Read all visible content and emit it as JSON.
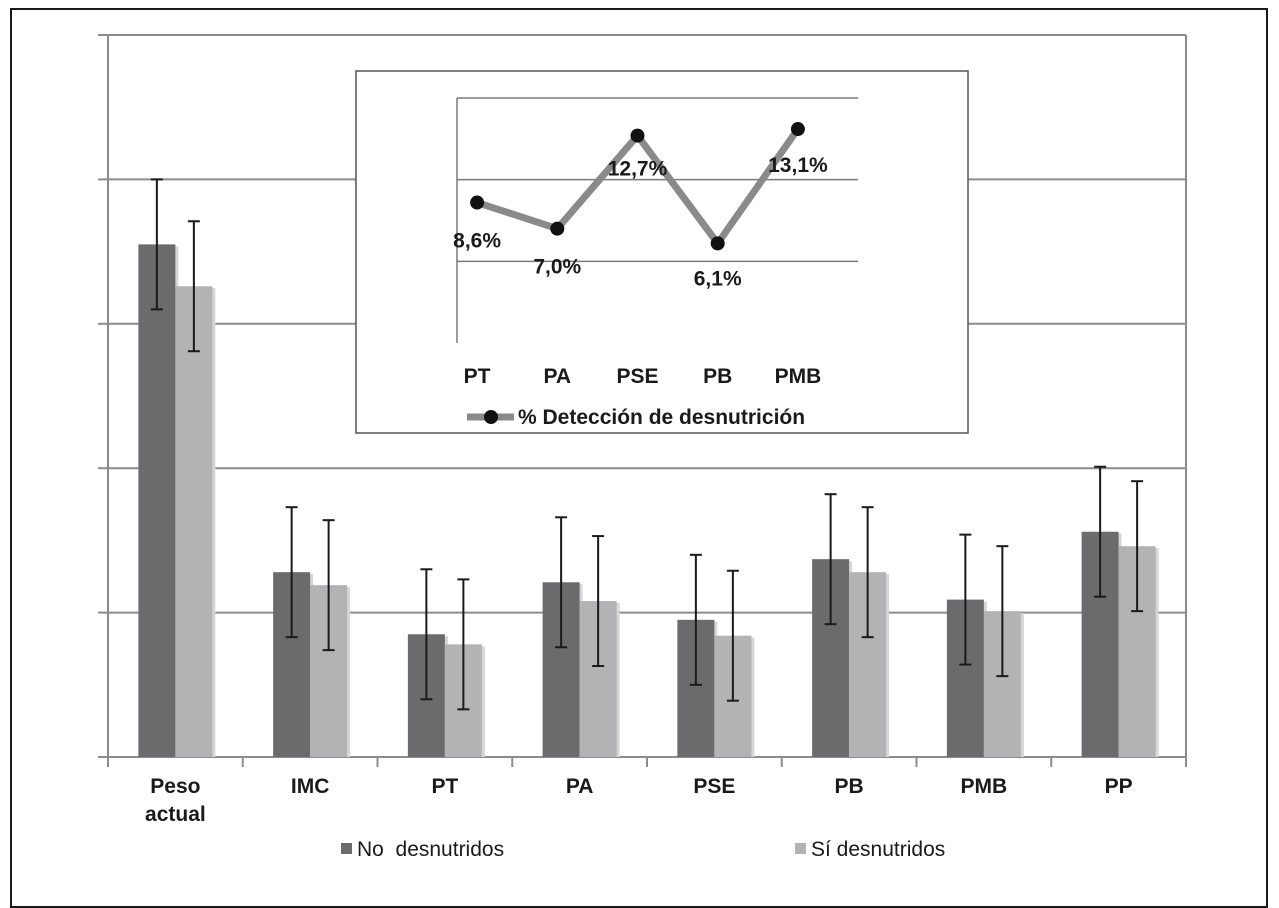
{
  "chart_data": [
    {
      "type": "bar",
      "categories": [
        [
          "Peso",
          "actual"
        ],
        [
          "IMC"
        ],
        [
          "PT"
        ],
        [
          "PA"
        ],
        [
          "PSE"
        ],
        [
          "PB"
        ],
        [
          "PMB"
        ],
        [
          "PP"
        ]
      ],
      "ylim": [
        0,
        50
      ],
      "series": [
        {
          "name": "No  desnutridos",
          "values": [
            35.5,
            12.8,
            8.5,
            12.1,
            9.5,
            13.7,
            10.9,
            15.6
          ],
          "errors": [
            4.5,
            4.5,
            4.5,
            4.5,
            4.5,
            4.5,
            4.5,
            4.5
          ]
        },
        {
          "name": "Sí desnutridos",
          "values": [
            32.6,
            11.9,
            7.8,
            10.8,
            8.4,
            12.8,
            10.1,
            14.6
          ],
          "errors": [
            4.5,
            4.5,
            4.5,
            4.5,
            4.5,
            4.5,
            4.5,
            4.5
          ]
        }
      ],
      "grid": true,
      "legend_position": "bottom",
      "colors": {
        "no_desnutridos": "#6b6b6e",
        "si_desnutridos": "#b3b3b6",
        "grid": "#8c8c8c",
        "error_bar": "#1a1a1a"
      }
    },
    {
      "type": "line",
      "categories": [
        "PT",
        "PA",
        "PSE",
        "PB",
        "PMB"
      ],
      "ylim": [
        0,
        15
      ],
      "series": [
        {
          "name": "% Detección de desnutrición",
          "values": [
            8.6,
            7.0,
            12.7,
            6.1,
            13.1
          ],
          "labels": [
            "8,6%",
            "7,0%",
            "12,7%",
            "6,1%",
            "13,1%"
          ]
        }
      ],
      "grid": true,
      "legend_position": "bottom",
      "colors": {
        "line": "#8a8a8a",
        "marker": "#111111"
      }
    }
  ]
}
